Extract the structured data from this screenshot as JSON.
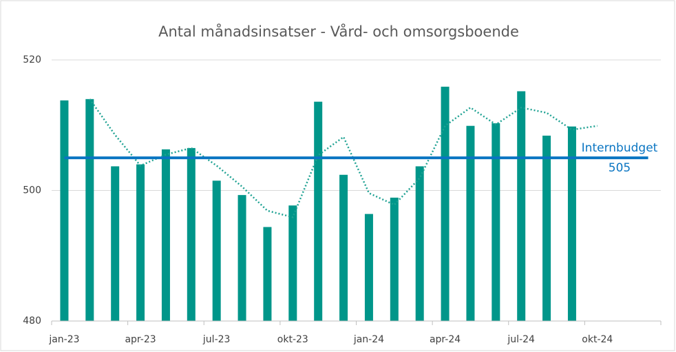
{
  "chart_data": {
    "type": "bar",
    "title": "Antal månadsinsatser - Vård- och omsorgsboende",
    "categories": [
      "jan-23",
      null,
      null,
      "apr-23",
      null,
      null,
      "jul-23",
      null,
      null,
      "okt-23",
      null,
      null,
      "jan-24",
      null,
      null,
      "apr-24",
      null,
      null,
      "jul-24",
      null,
      null,
      "okt-24",
      null,
      null
    ],
    "series": [
      {
        "type": "bar",
        "color": "#00968a",
        "values": [
          513.8,
          514.0,
          503.7,
          504.0,
          506.3,
          506.5,
          501.5,
          499.3,
          494.4,
          497.7,
          513.6,
          502.4,
          496.4,
          498.9,
          503.7,
          515.9,
          509.9,
          510.3,
          515.2,
          508.4,
          509.8,
          null,
          null,
          null
        ]
      },
      {
        "type": "line",
        "style": "dotted",
        "color": "#1fa293",
        "values": [
          null,
          514.0,
          508.5,
          503.8,
          505.5,
          506.5,
          503.8,
          500.6,
          496.9,
          495.9,
          505.4,
          508.2,
          499.6,
          497.8,
          501.9,
          509.9,
          512.7,
          510.1,
          512.7,
          511.9,
          509.3,
          509.9,
          null,
          null
        ]
      },
      {
        "type": "line",
        "style": "solid",
        "name": "Internbudget",
        "color": "#0a75c2",
        "values": [
          505,
          505,
          505,
          505,
          505,
          505,
          505,
          505,
          505,
          505,
          505,
          505,
          505,
          505,
          505,
          505,
          505,
          505,
          505,
          505,
          505,
          505,
          505,
          505
        ]
      }
    ],
    "ylim": [
      480,
      520
    ],
    "yticks": [
      480,
      500,
      520
    ],
    "grid": true
  }
}
